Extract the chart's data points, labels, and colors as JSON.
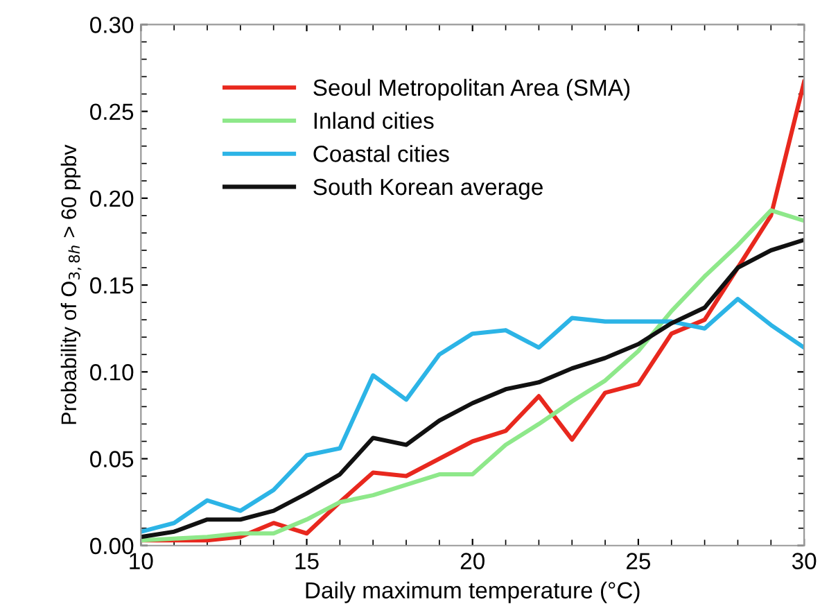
{
  "chart_data": {
    "type": "line",
    "xlabel": "Daily maximum temperature (°C)",
    "ylabel": "Probability of O$_{3,8h}$ > 60 ppbv",
    "x": [
      10,
      11,
      12,
      13,
      14,
      15,
      16,
      17,
      18,
      19,
      20,
      21,
      22,
      23,
      24,
      25,
      26,
      27,
      28,
      29,
      30
    ],
    "series": [
      {
        "name": "Seoul Metropolitan Area (SMA)",
        "color": "#e8281e",
        "values": [
          0.003,
          0.003,
          0.003,
          0.005,
          0.013,
          0.007,
          0.025,
          0.042,
          0.04,
          0.05,
          0.06,
          0.066,
          0.086,
          0.061,
          0.088,
          0.093,
          0.122,
          0.13,
          0.16,
          0.19,
          0.267
        ]
      },
      {
        "name": "Inland cities",
        "color": "#8ee88a",
        "values": [
          0.003,
          0.004,
          0.005,
          0.007,
          0.007,
          0.015,
          0.025,
          0.029,
          0.035,
          0.041,
          0.041,
          0.058,
          0.07,
          0.083,
          0.095,
          0.112,
          0.135,
          0.155,
          0.173,
          0.193,
          0.187
        ]
      },
      {
        "name": "Coastal cities",
        "color": "#2cb4e6",
        "values": [
          0.008,
          0.013,
          0.026,
          0.02,
          0.032,
          0.052,
          0.056,
          0.098,
          0.084,
          0.11,
          0.122,
          0.124,
          0.114,
          0.131,
          0.129,
          0.129,
          0.129,
          0.125,
          0.142,
          0.127,
          0.114
        ]
      },
      {
        "name": "South Korean average",
        "color": "#111111",
        "values": [
          0.005,
          0.008,
          0.015,
          0.015,
          0.02,
          0.03,
          0.041,
          0.062,
          0.058,
          0.072,
          0.082,
          0.09,
          0.094,
          0.102,
          0.108,
          0.116,
          0.128,
          0.137,
          0.16,
          0.17,
          0.176
        ]
      }
    ],
    "xlim": [
      10,
      30
    ],
    "xticks": [
      10,
      15,
      20,
      25,
      30
    ],
    "ylim": [
      0,
      0.3
    ],
    "yticks": [
      {
        "value": 0,
        "label": "0.00"
      },
      {
        "value": 0.05,
        "label": "0.05"
      },
      {
        "value": 0.1,
        "label": "0.10"
      },
      {
        "value": 0.15,
        "label": "0.15"
      },
      {
        "value": 0.2,
        "label": "0.20"
      },
      {
        "value": 0.25,
        "label": "0.25"
      },
      {
        "value": 0.3,
        "label": "0.30"
      }
    ],
    "legend": "top left",
    "grid": false,
    "marker": "none",
    "line_style": "solid"
  }
}
